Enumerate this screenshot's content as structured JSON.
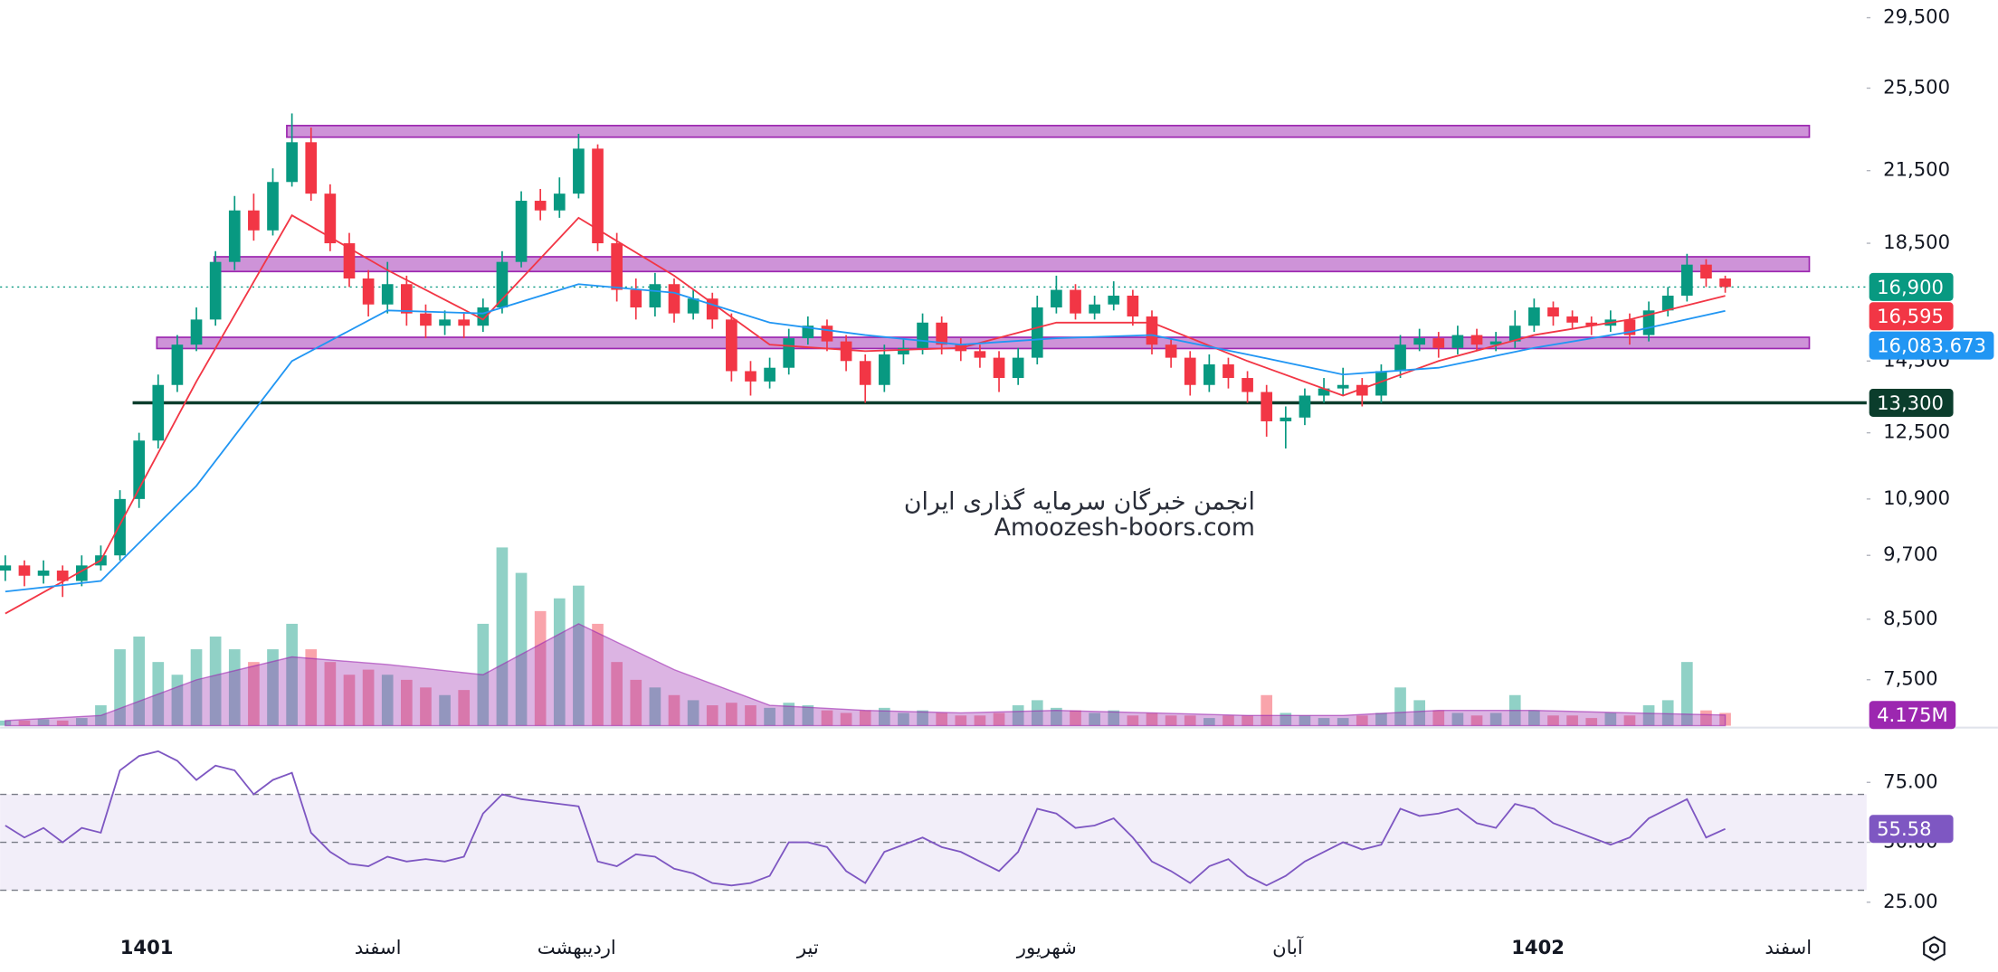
{
  "chart_data": [
    {
      "type": "candlestick",
      "xlim": [
        -0.27,
        97.4
      ],
      "xticks": [
        {
          "value": 7.4,
          "label": "1401"
        },
        {
          "value": 19.5,
          "label": "اسفند"
        },
        {
          "value": 29.9,
          "label": "اردیبهشت"
        },
        {
          "value": 42,
          "label": "تیر"
        },
        {
          "value": 54.5,
          "label": "شهریور"
        },
        {
          "value": 67.1,
          "label": "آبان"
        },
        {
          "value": 80.2,
          "label": "1402"
        },
        {
          "value": 93.3,
          "label": "اسفند"
        }
      ],
      "ylim": [
        6820,
        30600
      ],
      "log": true,
      "yticks": [
        {
          "value": 29500,
          "label": "29,500"
        },
        {
          "value": 25500,
          "label": "25,500"
        },
        {
          "value": 21500,
          "label": "21,500"
        },
        {
          "value": 18500,
          "label": "18,500"
        },
        {
          "value": 14500,
          "label": "14,500"
        },
        {
          "value": 12500,
          "label": "12,500"
        },
        {
          "value": 10900,
          "label": "10,900"
        },
        {
          "value": 9700,
          "label": "9,700"
        },
        {
          "value": 8500,
          "label": "8,500"
        },
        {
          "value": 7500,
          "label": "7,500"
        }
      ],
      "up_color": "#089981",
      "down_color": "#f23645",
      "open": [
        9400,
        9500,
        9300,
        9400,
        9200,
        9500,
        9700,
        10900,
        12300,
        13800,
        15000,
        15800,
        17800,
        19800,
        19000,
        21000,
        22800,
        20500,
        18500,
        17200,
        16300,
        17000,
        16000,
        15600,
        15800,
        15600,
        16200,
        17800,
        20200,
        19800,
        20500,
        22500,
        18500,
        16800,
        16200,
        17000,
        16000,
        16500,
        15800,
        14200,
        13900,
        14300,
        15200,
        15600,
        15100,
        14500,
        13800,
        14700,
        14900,
        15700,
        15000,
        14800,
        14600,
        14000,
        14600,
        16200,
        16800,
        16000,
        16300,
        16600,
        15900,
        15000,
        14600,
        13800,
        14400,
        14000,
        13600,
        12800,
        12900,
        13500,
        13700,
        13800,
        13500,
        14200,
        15000,
        15200,
        14900,
        15300,
        15000,
        15100,
        15600,
        16200,
        15900,
        15700,
        15600,
        15800,
        15300,
        16100,
        16600,
        17700,
        17200
      ],
      "high": [
        9700,
        9600,
        9600,
        9500,
        9700,
        9900,
        11100,
        12500,
        14100,
        15300,
        16200,
        18200,
        20400,
        20500,
        21600,
        24200,
        23500,
        20900,
        18900,
        17500,
        17800,
        17300,
        16300,
        16100,
        16000,
        16500,
        18200,
        20600,
        20700,
        21200,
        23200,
        22700,
        18900,
        17200,
        17400,
        17200,
        16800,
        16700,
        16000,
        14500,
        14600,
        15500,
        15900,
        15800,
        15300,
        14700,
        15000,
        15200,
        16000,
        15900,
        15200,
        15000,
        14800,
        14900,
        16600,
        17300,
        17000,
        16600,
        17100,
        16800,
        16100,
        15200,
        14800,
        14700,
        14600,
        14200,
        13800,
        13200,
        13700,
        14000,
        14300,
        14000,
        14400,
        15300,
        15500,
        15400,
        15600,
        15500,
        15400,
        16100,
        16500,
        16400,
        16100,
        15900,
        16100,
        16000,
        16400,
        16900,
        18100,
        17900,
        17300
      ],
      "low": [
        9200,
        9100,
        9150,
        8900,
        9100,
        9400,
        9600,
        10700,
        12100,
        13600,
        14800,
        15600,
        17500,
        18600,
        18800,
        20800,
        20200,
        18200,
        16900,
        15900,
        16000,
        15600,
        15200,
        15300,
        15200,
        15400,
        16000,
        17600,
        19400,
        19500,
        20300,
        18200,
        16400,
        15800,
        15900,
        15700,
        15800,
        15500,
        13900,
        13500,
        13700,
        14100,
        15000,
        14800,
        14200,
        13300,
        13600,
        14400,
        14700,
        14700,
        14500,
        14300,
        13600,
        13800,
        14400,
        16000,
        15800,
        15800,
        16100,
        15600,
        14700,
        14300,
        13500,
        13600,
        13700,
        13300,
        12400,
        12100,
        12700,
        13300,
        13500,
        13200,
        13300,
        14000,
        14800,
        14600,
        14700,
        14800,
        14800,
        14900,
        15400,
        15600,
        15500,
        15300,
        15400,
        15000,
        15100,
        15900,
        16400,
        16900,
        16700
      ],
      "close": [
        9500,
        9300,
        9400,
        9200,
        9500,
        9700,
        10900,
        12300,
        13800,
        15000,
        15800,
        17800,
        19800,
        19000,
        21000,
        22800,
        20500,
        18500,
        17200,
        16300,
        17000,
        16000,
        15600,
        15800,
        15600,
        16200,
        17800,
        20200,
        19800,
        20500,
        22500,
        18500,
        16800,
        16200,
        17000,
        16000,
        16500,
        15800,
        14200,
        13900,
        14300,
        15200,
        15600,
        15100,
        14500,
        13800,
        14700,
        14900,
        15700,
        15000,
        14800,
        14600,
        14000,
        14600,
        16200,
        16800,
        16000,
        16300,
        16600,
        15900,
        15000,
        14600,
        13800,
        14400,
        14000,
        13600,
        12800,
        12900,
        13500,
        13700,
        13800,
        13500,
        14200,
        15000,
        15200,
        14900,
        15300,
        15000,
        15100,
        15600,
        16200,
        15900,
        15700,
        15600,
        15800,
        15300,
        16100,
        16600,
        17700,
        17200,
        16900
      ],
      "price_line": {
        "value": 16900,
        "label": "16,900"
      },
      "ma_x": [
        0,
        5,
        10,
        15,
        20,
        25,
        30,
        35,
        40,
        45,
        50,
        55,
        60,
        65,
        70,
        75,
        80,
        85,
        90
      ],
      "series": [
        {
          "color": "#f23645",
          "values": [
            8600,
            9600,
            13900,
            19600,
            17500,
            15800,
            19500,
            17300,
            15000,
            14800,
            14900,
            15700,
            15700,
            14500,
            13500,
            14500,
            15300,
            15800,
            16595
          ],
          "value_labels": [
            null,
            null,
            null,
            null,
            null,
            null,
            null,
            null,
            null,
            null,
            null,
            null,
            null,
            null,
            null,
            null,
            null,
            null,
            "16,595"
          ]
        },
        {
          "color": "#2196f3",
          "values": [
            9000,
            9200,
            11200,
            14500,
            16100,
            16000,
            17000,
            16700,
            15700,
            15300,
            15000,
            15200,
            15300,
            14700,
            14100,
            14300,
            14900,
            15400,
            16083.673
          ],
          "value_labels": [
            null,
            null,
            null,
            null,
            null,
            null,
            null,
            null,
            null,
            null,
            null,
            null,
            null,
            null,
            null,
            null,
            null,
            null,
            "16,083.673"
          ]
        }
      ],
      "zones": [
        [
          23040,
          23600
        ],
        [
          17450,
          17990
        ],
        [
          14880,
          15230
        ]
      ],
      "zone_color": "#ce93d8",
      "zone_stroke": "#9c27b0",
      "support": {
        "value": 13300,
        "label": "13,300",
        "color": "#0b3d2c"
      },
      "volume": {
        "ylim": [
          0,
          90
        ],
        "up_color": "rgba(8,153,129,0.45)",
        "down_color": "rgba(242,54,69,0.45)",
        "values": [
          2,
          2,
          2.5,
          2,
          3,
          8,
          30,
          35,
          25,
          20,
          30,
          35,
          30,
          25,
          30,
          40,
          30,
          25,
          20,
          22,
          20,
          18,
          15,
          12,
          14,
          40,
          70,
          60,
          45,
          50,
          55,
          40,
          25,
          18,
          15,
          12,
          10,
          8,
          9,
          8,
          7,
          9,
          8,
          6,
          5,
          6,
          7,
          5,
          6,
          5,
          4,
          4,
          5,
          8,
          10,
          7,
          6,
          5,
          6,
          4,
          5,
          4,
          4,
          3,
          4,
          4,
          12,
          5,
          4,
          3,
          3,
          4,
          5,
          15,
          10,
          6,
          5,
          4,
          5,
          12,
          6,
          4,
          4,
          3,
          5,
          4,
          8,
          10,
          25,
          6,
          5
        ],
        "ma_color": "#9c27b0",
        "ma_values": [
          2,
          4,
          18,
          27,
          24,
          20,
          40,
          22,
          8,
          6,
          5,
          6,
          5,
          4,
          4,
          6,
          6,
          5,
          4.175
        ],
        "ma_labels": [
          null,
          null,
          null,
          null,
          null,
          null,
          null,
          null,
          null,
          null,
          null,
          null,
          null,
          null,
          null,
          null,
          null,
          null,
          "4.175M"
        ]
      },
      "watermark": [
        "انجمن خبرگان سرمایه گذاری ایران",
        "Amoozesh-boors.com"
      ]
    },
    {
      "type": "line",
      "ylim": [
        19,
        96
      ],
      "yticks": [
        {
          "value": 75,
          "label": "75.00"
        },
        {
          "value": 50,
          "label": "50.00"
        },
        {
          "value": 25,
          "label": "25.00"
        }
      ],
      "levels": [
        70,
        50,
        30
      ],
      "color": "#7e57c2",
      "values": [
        57,
        52,
        56,
        50,
        56,
        54,
        80,
        86,
        88,
        84,
        76,
        82,
        80,
        70,
        76,
        79,
        54,
        46,
        41,
        40,
        44,
        42,
        43,
        42,
        44,
        62,
        70,
        68,
        67,
        66,
        65,
        42,
        40,
        45,
        44,
        39,
        37,
        33,
        32,
        33,
        36,
        50,
        50,
        48,
        38,
        33,
        46,
        49,
        52,
        48,
        46,
        42,
        38,
        46,
        64,
        62,
        56,
        57,
        60,
        52,
        42,
        38,
        33,
        40,
        43,
        36,
        32,
        36,
        42,
        46,
        50,
        47,
        49,
        64,
        61,
        62,
        64,
        58,
        56,
        66,
        64,
        58,
        55,
        52,
        49,
        52,
        60,
        64,
        68,
        52,
        55.58
      ],
      "value_labels": [
        null,
        null,
        null,
        null,
        null,
        null,
        null,
        null,
        null,
        null,
        null,
        null,
        null,
        null,
        null,
        null,
        null,
        null,
        null,
        null,
        null,
        null,
        null,
        null,
        null,
        null,
        null,
        null,
        null,
        null,
        null,
        null,
        null,
        null,
        null,
        null,
        null,
        null,
        null,
        null,
        null,
        null,
        null,
        null,
        null,
        null,
        null,
        null,
        null,
        null,
        null,
        null,
        null,
        null,
        null,
        null,
        null,
        null,
        null,
        null,
        null,
        null,
        null,
        null,
        null,
        null,
        null,
        null,
        null,
        null,
        null,
        null,
        null,
        null,
        null,
        null,
        null,
        null,
        null,
        null,
        null,
        null,
        null,
        null,
        null,
        null,
        null,
        null,
        null,
        null,
        "55.58"
      ]
    }
  ]
}
